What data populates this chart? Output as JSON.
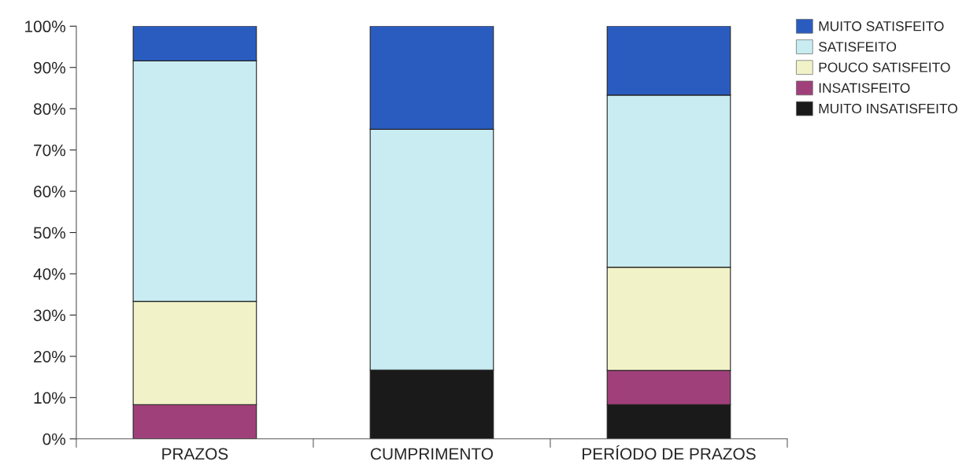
{
  "chart_data": {
    "type": "bar",
    "stacked": true,
    "categories": [
      "PRAZOS",
      "CUMPRIMENTO",
      "PERÍODO DE PRAZOS"
    ],
    "series": [
      {
        "name": "MUITO INSATISFEITO",
        "color": "#1a1a1a",
        "values": [
          0,
          16.7,
          8.3
        ]
      },
      {
        "name": "INSATISFEITO",
        "color": "#a0407a",
        "values": [
          8.3,
          0,
          8.3
        ]
      },
      {
        "name": "POUCO SATISFEITO",
        "color": "#f2f2c8",
        "values": [
          25,
          0,
          25
        ]
      },
      {
        "name": "SATISFEITO",
        "color": "#c8ecf2",
        "values": [
          58.3,
          58.3,
          41.7
        ]
      },
      {
        "name": "MUITO SATISFEITO",
        "color": "#2a5cc0",
        "values": [
          8.4,
          25,
          16.7
        ]
      }
    ],
    "ylim": [
      0,
      100
    ],
    "yticks": [
      {
        "value": 0,
        "label": "0%"
      },
      {
        "value": 10,
        "label": "10%"
      },
      {
        "value": 20,
        "label": "20%"
      },
      {
        "value": 30,
        "label": "30%"
      },
      {
        "value": 40,
        "label": "40%"
      },
      {
        "value": 50,
        "label": "50%"
      },
      {
        "value": 60,
        "label": "60%"
      },
      {
        "value": 70,
        "label": "70%"
      },
      {
        "value": 80,
        "label": "80%"
      },
      {
        "value": 90,
        "label": "90%"
      },
      {
        "value": 100,
        "label": "100%"
      }
    ],
    "grid": false,
    "legend": "top right"
  }
}
